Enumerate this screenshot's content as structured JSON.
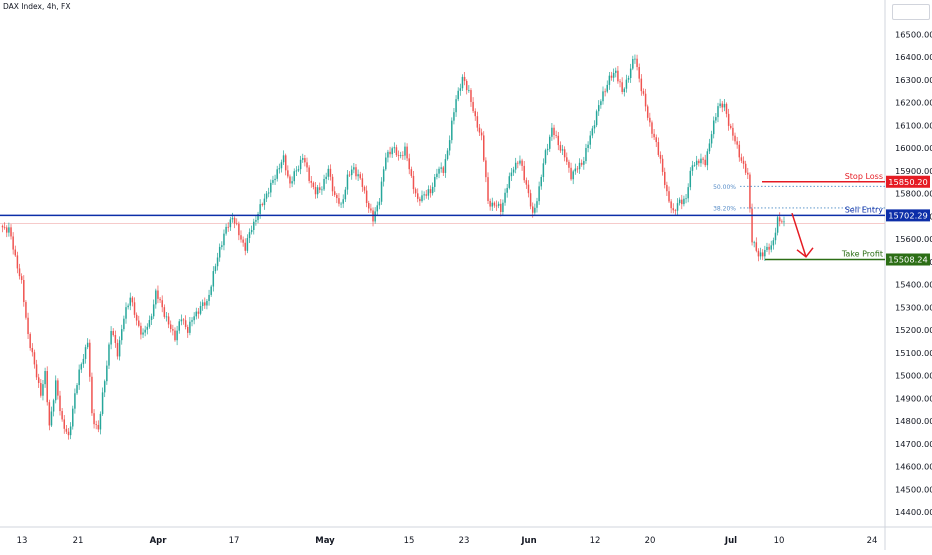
{
  "header": {
    "symbol_title": "DAX Index, 4h, FX"
  },
  "chart_data": {
    "type": "candlestick",
    "title": "DAX Index, 4h, FX",
    "symbol": "DAX Index",
    "interval": "4h",
    "source": "FX",
    "ylim": [
      14350,
      16620
    ],
    "y_tick_labels": [
      "16500.00",
      "16400.00",
      "16300.00",
      "16200.00",
      "16100.00",
      "16000.00",
      "15900.00",
      "15800.00",
      "15700.00",
      "15600.00",
      "15500.00",
      "15400.00",
      "15300.00",
      "15200.00",
      "15100.00",
      "15000.00",
      "14900.00",
      "14800.00",
      "14700.00",
      "14600.00",
      "14500.00",
      "14400.00"
    ],
    "y_tick_values": [
      16500,
      16400,
      16300,
      16200,
      16100,
      16000,
      15900,
      15800,
      15700,
      15600,
      15500,
      15400,
      15300,
      15200,
      15100,
      15000,
      14900,
      14800,
      14700,
      14600,
      14500,
      14400
    ],
    "x_tick_labels": [
      "13",
      "21",
      "Apr",
      "17",
      "May",
      "15",
      "23",
      "Jun",
      "12",
      "20",
      "Jul",
      "10",
      "24"
    ],
    "x_tick_bold": [
      false,
      false,
      true,
      false,
      true,
      false,
      false,
      true,
      false,
      false,
      true,
      false,
      false
    ],
    "colors": {
      "up": "#26a69a",
      "down": "#ef5350",
      "sell_line": "#0c2ea8",
      "stop_loss": "#e51b23",
      "take_profit": "#2c6e15",
      "fib": "#4a8ac4",
      "arrow": "#e51b23",
      "grid": "#ffffff",
      "axis_text": "#131722"
    },
    "levels": [
      {
        "name": "Stop Loss",
        "label": "Stop Loss",
        "value": 15850.2,
        "value_label": "15850.20",
        "color": "#e51b23"
      },
      {
        "name": "Sell Entry",
        "label": "Sell Entry",
        "value": 15702.29,
        "value_label": "15702.29",
        "color": "#0c2ea8"
      },
      {
        "name": "Take Profit",
        "label": "Take Profit",
        "value": 15508.24,
        "value_label": "15508.24",
        "color": "#2c6e15"
      }
    ],
    "fibs": [
      {
        "label": "50.00%",
        "value": 15830
      },
      {
        "label": "38.20%",
        "value": 15735
      }
    ],
    "faint_line_value": 15666,
    "waypoints": [
      [
        0,
        15650
      ],
      [
        3,
        15640
      ],
      [
        6,
        15520
      ],
      [
        9,
        15400
      ],
      [
        12,
        15180
      ],
      [
        15,
        15040
      ],
      [
        18,
        14920
      ],
      [
        20,
        15000
      ],
      [
        22,
        14780
      ],
      [
        25,
        14960
      ],
      [
        28,
        14800
      ],
      [
        31,
        14720
      ],
      [
        34,
        14920
      ],
      [
        37,
        15050
      ],
      [
        40,
        15150
      ],
      [
        42,
        14820
      ],
      [
        45,
        14760
      ],
      [
        48,
        14980
      ],
      [
        51,
        15200
      ],
      [
        54,
        15100
      ],
      [
        57,
        15250
      ],
      [
        60,
        15350
      ],
      [
        63,
        15230
      ],
      [
        66,
        15180
      ],
      [
        69,
        15230
      ],
      [
        72,
        15360
      ],
      [
        75,
        15300
      ],
      [
        78,
        15220
      ],
      [
        81,
        15170
      ],
      [
        84,
        15250
      ],
      [
        87,
        15200
      ],
      [
        90,
        15260
      ],
      [
        93,
        15300
      ],
      [
        96,
        15320
      ],
      [
        99,
        15440
      ],
      [
        102,
        15560
      ],
      [
        105,
        15640
      ],
      [
        108,
        15700
      ],
      [
        111,
        15620
      ],
      [
        114,
        15560
      ],
      [
        117,
        15650
      ],
      [
        120,
        15710
      ],
      [
        123,
        15780
      ],
      [
        126,
        15830
      ],
      [
        129,
        15900
      ],
      [
        132,
        15950
      ],
      [
        135,
        15840
      ],
      [
        138,
        15900
      ],
      [
        141,
        15960
      ],
      [
        144,
        15870
      ],
      [
        147,
        15800
      ],
      [
        150,
        15830
      ],
      [
        153,
        15900
      ],
      [
        156,
        15790
      ],
      [
        159,
        15740
      ],
      [
        162,
        15870
      ],
      [
        165,
        15910
      ],
      [
        168,
        15860
      ],
      [
        171,
        15770
      ],
      [
        174,
        15680
      ],
      [
        177,
        15780
      ],
      [
        180,
        15960
      ],
      [
        183,
        16000
      ],
      [
        186,
        15960
      ],
      [
        189,
        15990
      ],
      [
        192,
        15870
      ],
      [
        195,
        15760
      ],
      [
        198,
        15800
      ],
      [
        201,
        15800
      ],
      [
        204,
        15900
      ],
      [
        207,
        15900
      ],
      [
        210,
        16040
      ],
      [
        213,
        16220
      ],
      [
        216,
        16300
      ],
      [
        219,
        16250
      ],
      [
        222,
        16120
      ],
      [
        225,
        16050
      ],
      [
        228,
        15760
      ],
      [
        231,
        15750
      ],
      [
        234,
        15730
      ],
      [
        237,
        15830
      ],
      [
        240,
        15920
      ],
      [
        243,
        15940
      ],
      [
        246,
        15840
      ],
      [
        249,
        15700
      ],
      [
        252,
        15820
      ],
      [
        255,
        15980
      ],
      [
        258,
        16080
      ],
      [
        261,
        16020
      ],
      [
        264,
        15960
      ],
      [
        267,
        15880
      ],
      [
        270,
        15910
      ],
      [
        273,
        15950
      ],
      [
        276,
        16050
      ],
      [
        279,
        16150
      ],
      [
        282,
        16240
      ],
      [
        285,
        16300
      ],
      [
        288,
        16340
      ],
      [
        291,
        16240
      ],
      [
        294,
        16320
      ],
      [
        297,
        16400
      ],
      [
        300,
        16260
      ],
      [
        303,
        16140
      ],
      [
        306,
        16040
      ],
      [
        309,
        15950
      ],
      [
        312,
        15790
      ],
      [
        315,
        15720
      ],
      [
        318,
        15760
      ],
      [
        321,
        15780
      ],
      [
        324,
        15930
      ],
      [
        327,
        15940
      ],
      [
        330,
        15940
      ],
      [
        333,
        16060
      ],
      [
        336,
        16190
      ],
      [
        339,
        16180
      ],
      [
        342,
        16080
      ],
      [
        345,
        16000
      ],
      [
        348,
        15920
      ],
      [
        350,
        15870
      ],
      [
        352,
        15600
      ],
      [
        355,
        15520
      ],
      [
        358,
        15550
      ],
      [
        361,
        15560
      ],
      [
        364,
        15680
      ],
      [
        367,
        15670
      ]
    ]
  }
}
